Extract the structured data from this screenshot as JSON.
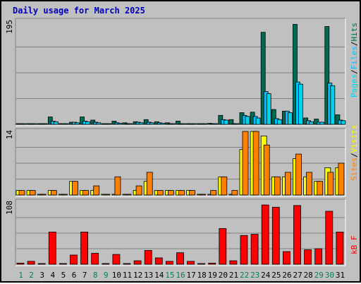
{
  "title": "Daily usage for March 2025",
  "colors": {
    "hits": "#006b54",
    "files": "#00c0ff",
    "pages": "#00d4e8",
    "visits": "#ffff00",
    "sites": "#ff8000",
    "kbytes": "#ff0000",
    "weekday_label": "#000000",
    "weekend_label": "#00805c",
    "title": "#0000b8"
  },
  "legend": {
    "panel1": [
      "Pages",
      "Files",
      "Hits"
    ],
    "panel2": [
      "Sites",
      "Visits"
    ],
    "panel3": "kB F",
    "separator": "/"
  },
  "chart_data": {
    "type": "bar",
    "days": [
      "1",
      "2",
      "3",
      "4",
      "5",
      "6",
      "7",
      "8",
      "9",
      "10",
      "11",
      "12",
      "13",
      "14",
      "15",
      "16",
      "17",
      "18",
      "19",
      "20",
      "21",
      "22",
      "23",
      "24",
      "25",
      "26",
      "27",
      "28",
      "29",
      "30",
      "31"
    ],
    "weekend_days": [
      "1",
      "2",
      "8",
      "9",
      "15",
      "16",
      "22",
      "23",
      "29",
      "30"
    ],
    "panels": [
      {
        "name": "hits-files-pages",
        "ymax_label": "195",
        "ylim": [
          0,
          195
        ],
        "series": [
          {
            "name": "Hits",
            "values": [
              1,
              1,
              0,
              14,
              0,
              4,
              14,
              8,
              0,
              6,
              3,
              5,
              9,
              5,
              3,
              6,
              1,
              1,
              2,
              17,
              9,
              22,
              23,
              174,
              28,
              25,
              189,
              12,
              10,
              185,
              18
            ]
          },
          {
            "name": "Files",
            "values": [
              0,
              0,
              0,
              6,
              0,
              4,
              6,
              4,
              0,
              3,
              0,
              4,
              4,
              3,
              0,
              0,
              0,
              0,
              0,
              9,
              0,
              17,
              15,
              62,
              11,
              25,
              80,
              7,
              4,
              78,
              8
            ]
          },
          {
            "name": "Pages",
            "values": [
              0,
              0,
              0,
              5,
              0,
              3,
              5,
              3,
              0,
              2,
              0,
              3,
              3,
              2,
              0,
              0,
              0,
              0,
              0,
              8,
              0,
              15,
              12,
              58,
              9,
              22,
              76,
              5,
              4,
              73,
              7
            ]
          }
        ]
      },
      {
        "name": "visits-sites",
        "ymax_label": "14",
        "ylim": [
          0,
          14
        ],
        "series": [
          {
            "name": "Visits",
            "values": [
              1,
              1,
              0,
              1,
              0,
              3,
              1,
              1,
              0,
              0,
              0,
              1,
              3,
              1,
              1,
              1,
              1,
              0,
              0,
              4,
              0,
              10,
              14,
              13,
              4,
              4,
              8,
              4,
              3,
              6,
              6
            ]
          },
          {
            "name": "Sites",
            "values": [
              1,
              1,
              0,
              1,
              0,
              3,
              1,
              2,
              0,
              4,
              0,
              2,
              5,
              1,
              1,
              1,
              1,
              0,
              1,
              4,
              1,
              14,
              14,
              11,
              4,
              5,
              9,
              5,
              3,
              5,
              7
            ]
          }
        ]
      },
      {
        "name": "kbytes",
        "ymax_label": "108",
        "ylim": [
          0,
          108
        ],
        "series": [
          {
            "name": "kB F",
            "values": [
              2,
              5,
              0,
              56,
              0,
              16,
              56,
              19,
              0,
              17,
              0,
              6,
              24,
              11,
              5,
              20,
              5,
              0,
              2,
              62,
              6,
              50,
              52,
              103,
              99,
              22,
              102,
              25,
              27,
              92,
              56
            ]
          }
        ]
      }
    ]
  }
}
